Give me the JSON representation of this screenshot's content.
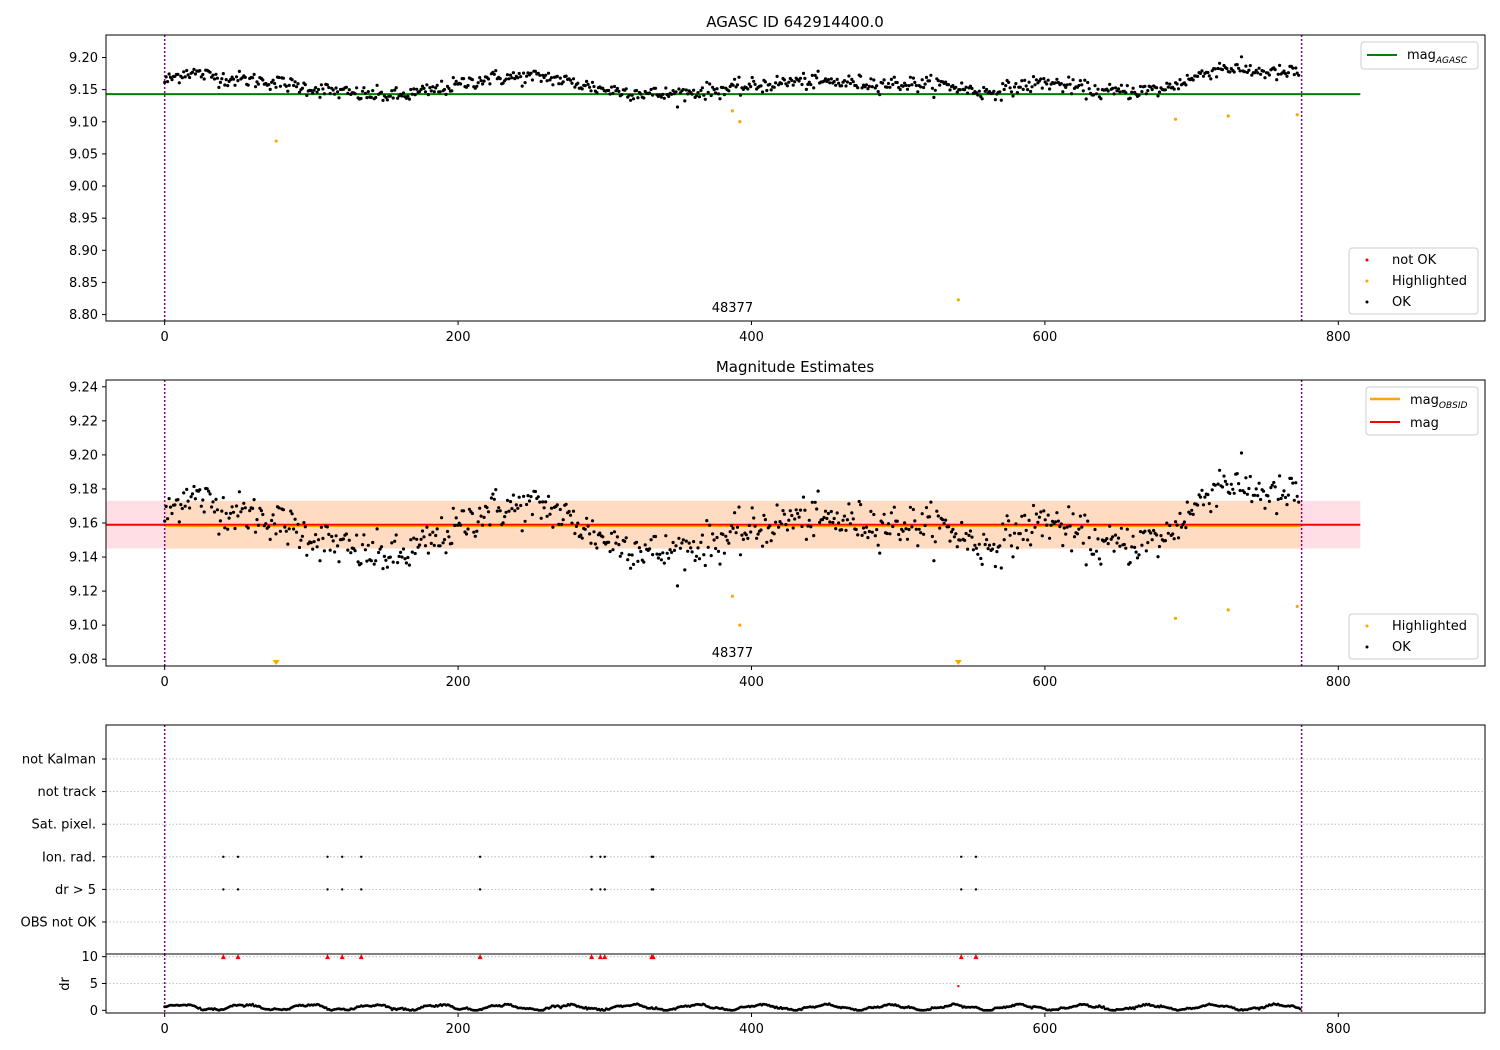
{
  "chart_data": [
    {
      "type": "scatter",
      "title": "AGASC ID 642914400.0",
      "obsid_label": "48377",
      "xlim": [
        -40,
        900
      ],
      "ylim": [
        8.79,
        9.235
      ],
      "x_ticks": [
        0,
        200,
        400,
        600,
        800
      ],
      "y_ticks": [
        8.8,
        8.85,
        8.9,
        8.95,
        9.0,
        9.05,
        9.1,
        9.15,
        9.2
      ],
      "obs_boundaries": [
        0,
        775
      ],
      "mag_agasc": 9.143,
      "mag_agasc_range": [
        -40,
        815
      ],
      "colors": {
        "ok": "#000000",
        "highlighted": "#ffa500",
        "not_ok": "#ff0000",
        "mag_agasc": "#008000",
        "boundary": "#800080"
      },
      "ok_model": {
        "n": 775,
        "x_start": 0,
        "x_end": 773,
        "knots_x": [
          0,
          15,
          40,
          70,
          100,
          130,
          160,
          190,
          220,
          260,
          300,
          340,
          380,
          430,
          480,
          530,
          560,
          600,
          640,
          680,
          720,
          760,
          773
        ],
        "knots_y": [
          9.163,
          9.178,
          9.168,
          9.163,
          9.152,
          9.143,
          9.14,
          9.152,
          9.168,
          9.17,
          9.15,
          9.142,
          9.15,
          9.163,
          9.16,
          9.158,
          9.145,
          9.162,
          9.146,
          9.15,
          9.185,
          9.175,
          9.178
        ],
        "noise": 0.008
      },
      "highlighted": [
        {
          "x": 76,
          "y": 9.07
        },
        {
          "x": 387,
          "y": 9.117
        },
        {
          "x": 392,
          "y": 9.1
        },
        {
          "x": 541,
          "y": 8.823
        },
        {
          "x": 689,
          "y": 9.104
        },
        {
          "x": 725,
          "y": 9.109
        },
        {
          "x": 772,
          "y": 9.111
        }
      ],
      "legend_main": [
        {
          "label": "mag",
          "sub": "AGASC"
        }
      ],
      "legend_points": [
        "not OK",
        "Highlighted",
        "OK"
      ]
    },
    {
      "type": "scatter",
      "title": "Magnitude Estimates",
      "obsid_label": "48377",
      "xlim": [
        -40,
        900
      ],
      "ylim": [
        9.076,
        9.244
      ],
      "x_ticks": [
        0,
        200,
        400,
        600,
        800
      ],
      "y_ticks": [
        9.08,
        9.1,
        9.12,
        9.14,
        9.16,
        9.18,
        9.2,
        9.22,
        9.24
      ],
      "obs_boundaries": [
        0,
        775
      ],
      "mag_obsid": 9.159,
      "mag_obsid_band": [
        9.145,
        9.173
      ],
      "mag_obsid_range": [
        0,
        775
      ],
      "mag": 9.159,
      "mag_band": [
        9.145,
        9.173
      ],
      "mag_range": [
        -40,
        815
      ],
      "below_range_markers": [
        76,
        541
      ],
      "colors": {
        "ok": "#000000",
        "highlighted": "#ffa500",
        "mag_obsid": "#ffa500",
        "mag": "#ff0000",
        "mag_band": "#ffc0cb",
        "mag_obsid_band": "#ffdab9",
        "boundary": "#800080"
      },
      "legend_main": [
        {
          "label": "mag",
          "sub": "OBSID"
        },
        {
          "label": "mag",
          "sub": ""
        }
      ],
      "legend_points": [
        "Highlighted",
        "OK"
      ]
    },
    {
      "type": "scatter",
      "categories": [
        "OBS not OK",
        "dr > 5",
        "Ion. rad.",
        "Sat. pixel.",
        "not track",
        "not Kalman"
      ],
      "flag_x": [
        40,
        50,
        111,
        121,
        134,
        215,
        291,
        297,
        300,
        332,
        333,
        543,
        553
      ],
      "xlim": [
        -40,
        900
      ],
      "x_ticks": [
        0,
        200,
        400,
        600,
        800
      ],
      "obs_boundaries": [
        0,
        775
      ]
    },
    {
      "type": "scatter",
      "ylabel": "dr",
      "ylim": [
        -0.5,
        10.5
      ],
      "y_ticks": [
        0,
        5,
        10
      ],
      "xlim": [
        -40,
        900
      ],
      "x_ticks": [
        0,
        200,
        400,
        600,
        800
      ],
      "obs_boundaries": [
        0,
        775
      ],
      "clipped_x": [
        40,
        50,
        111,
        121,
        134,
        215,
        291,
        297,
        300,
        332,
        333,
        543,
        553
      ],
      "extra_points": [
        {
          "x": 541,
          "y": 4.5
        }
      ],
      "colors": {
        "ok": "#000000",
        "flagged": "#ff0000",
        "boundary": "#800080"
      }
    }
  ]
}
